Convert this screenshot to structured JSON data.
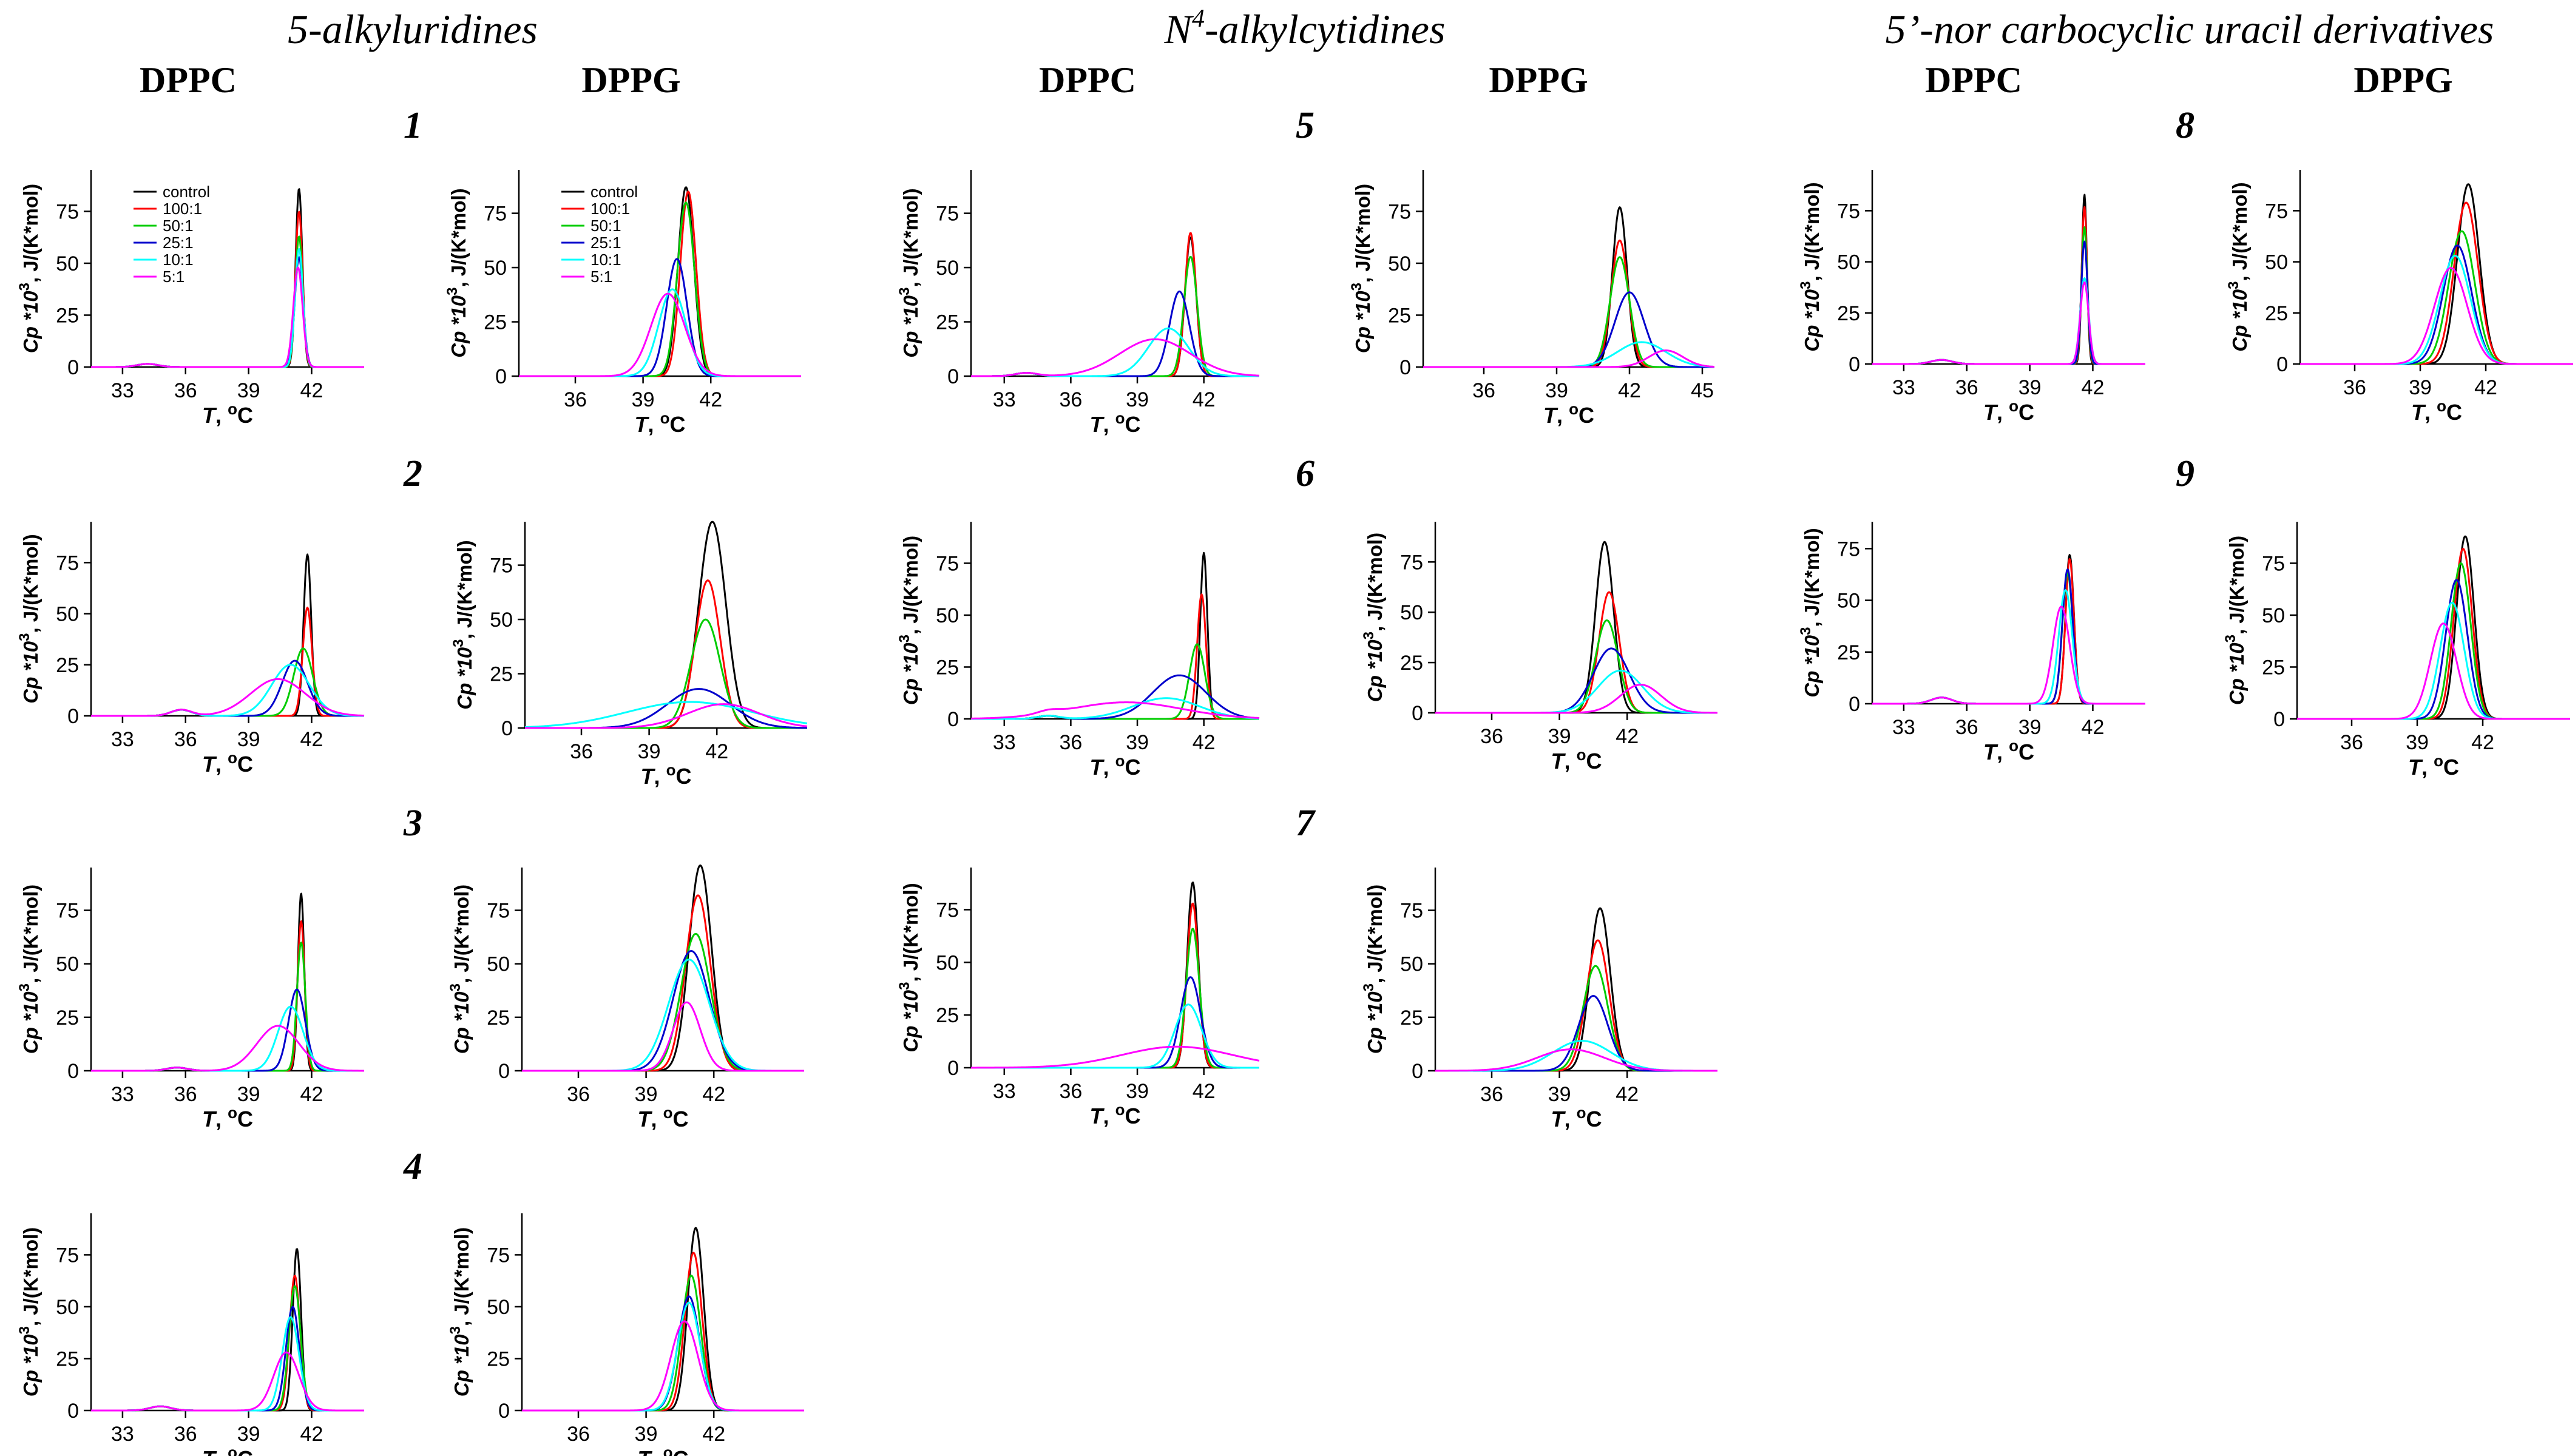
{
  "headers": {
    "groups": [
      {
        "label": "5-alkyluridines"
      },
      {
        "prefix": "N",
        "sup": "4",
        "suffix": "-alkylcytidines"
      },
      {
        "label": "5’-nor carbocyclic uracil derivatives"
      }
    ],
    "columns": [
      "DPPC",
      "DPPG",
      "DPPC",
      "DPPG",
      "DPPC",
      "DPPG"
    ]
  },
  "compounds": [
    "1",
    "2",
    "3",
    "4",
    "5",
    "6",
    "7",
    "8",
    "9"
  ],
  "axis_text": {
    "ylabel_main": "Cp *10",
    "ylabel_sup": "3",
    "ylabel_unit": ", J/(K*mol)",
    "xlabel_main": "T",
    "xlabel_unit": ", ",
    "xlabel_sup": "o",
    "xlabel_C": "C"
  },
  "series": [
    {
      "name": "control",
      "color": "#000000"
    },
    {
      "name": "100:1",
      "color": "#ff0000"
    },
    {
      "name": "50:1",
      "color": "#00cc00"
    },
    {
      "name": "25:1",
      "color": "#0000cc"
    },
    {
      "name": "10:1",
      "color": "#00ffff"
    },
    {
      "name": "5:1",
      "color": "#ff00ff"
    }
  ],
  "chart_data": [
    {
      "id": "c1-dppc",
      "compound": "1",
      "lipid": "DPPC",
      "type": "line",
      "xlabel": "T, oC",
      "ylabel": "Cp *10^3, J/(K*mol)",
      "xlim": [
        31.5,
        44.5
      ],
      "xticks": [
        33,
        36,
        39,
        42
      ],
      "ylim": [
        0,
        95
      ],
      "yticks": [
        0,
        25,
        50,
        75
      ],
      "show_legend": true,
      "pre": {
        "center": 34.2,
        "height": 1.5,
        "width": 0.5
      },
      "peaks": [
        {
          "center": 41.4,
          "height": 86,
          "width": 0.16
        },
        {
          "center": 41.4,
          "height": 75,
          "width": 0.17
        },
        {
          "center": 41.4,
          "height": 63,
          "width": 0.18
        },
        {
          "center": 41.4,
          "height": 53,
          "width": 0.2
        },
        {
          "center": 41.4,
          "height": 57,
          "width": 0.19
        },
        {
          "center": 41.35,
          "height": 48,
          "width": 0.22
        }
      ]
    },
    {
      "id": "c1-dppg",
      "compound": "1",
      "lipid": "DPPG",
      "type": "line",
      "xlabel": "T, oC",
      "ylabel": "Cp *10^3, J/(K*mol)",
      "xlim": [
        33.5,
        46
      ],
      "xticks": [
        36,
        39,
        42
      ],
      "ylim": [
        0,
        95
      ],
      "yticks": [
        0,
        25,
        50,
        75
      ],
      "show_legend": true,
      "peaks": [
        {
          "center": 40.9,
          "height": 87,
          "width": 0.35
        },
        {
          "center": 41.0,
          "height": 85,
          "width": 0.35
        },
        {
          "center": 40.9,
          "height": 80,
          "width": 0.38
        },
        {
          "center": 40.5,
          "height": 54,
          "width": 0.45
        },
        {
          "center": 40.3,
          "height": 40,
          "width": 0.6
        },
        {
          "center": 40.1,
          "height": 38,
          "width": 0.75
        }
      ]
    },
    {
      "id": "c2-dppc",
      "compound": "2",
      "lipid": "DPPC",
      "type": "line",
      "xlabel": "T, oC",
      "ylabel": "Cp *10^3, J/(K*mol)",
      "xlim": [
        31.5,
        44.5
      ],
      "xticks": [
        33,
        36,
        39,
        42
      ],
      "ylim": [
        0,
        95
      ],
      "yticks": [
        0,
        25,
        50,
        75
      ],
      "pre": {
        "center": 35.8,
        "height": 3,
        "width": 0.5
      },
      "peaks": [
        {
          "center": 41.8,
          "height": 79,
          "width": 0.18
        },
        {
          "center": 41.8,
          "height": 53,
          "width": 0.22
        },
        {
          "center": 41.6,
          "height": 33,
          "width": 0.45
        },
        {
          "center": 41.2,
          "height": 27,
          "width": 0.6
        },
        {
          "center": 41.0,
          "height": 25,
          "width": 0.9
        },
        {
          "center": 40.4,
          "height": 18,
          "width": 1.3
        }
      ]
    },
    {
      "id": "c2-dppg",
      "compound": "2",
      "lipid": "DPPG",
      "type": "line",
      "xlabel": "T, oC",
      "ylabel": "Cp *10^3, J/(K*mol)",
      "xlim": [
        33.5,
        46
      ],
      "xticks": [
        36,
        39,
        42
      ],
      "ylim": [
        0,
        95
      ],
      "yticks": [
        0,
        25,
        50,
        75
      ],
      "peaks": [
        {
          "center": 41.8,
          "height": 95,
          "width": 0.6
        },
        {
          "center": 41.6,
          "height": 68,
          "width": 0.55
        },
        {
          "center": 41.5,
          "height": 50,
          "width": 0.65
        },
        {
          "center": 41.2,
          "height": 18,
          "width": 1.4
        },
        {
          "center": 40.8,
          "height": 12,
          "width": 2.8
        },
        {
          "center": 42.3,
          "height": 11,
          "width": 1.6
        }
      ]
    },
    {
      "id": "c3-dppc",
      "compound": "3",
      "lipid": "DPPC",
      "type": "line",
      "xlabel": "T, oC",
      "ylabel": "Cp *10^3, J/(K*mol)",
      "xlim": [
        31.5,
        44.5
      ],
      "xticks": [
        33,
        36,
        39,
        42
      ],
      "ylim": [
        0,
        95
      ],
      "yticks": [
        0,
        25,
        50,
        75
      ],
      "pre": {
        "center": 35.6,
        "height": 1.5,
        "width": 0.5
      },
      "peaks": [
        {
          "center": 41.5,
          "height": 83,
          "width": 0.15
        },
        {
          "center": 41.5,
          "height": 70,
          "width": 0.17
        },
        {
          "center": 41.5,
          "height": 60,
          "width": 0.2
        },
        {
          "center": 41.3,
          "height": 38,
          "width": 0.4
        },
        {
          "center": 41.0,
          "height": 30,
          "width": 0.6
        },
        {
          "center": 40.4,
          "height": 21,
          "width": 1.0
        }
      ]
    },
    {
      "id": "c3-dppg",
      "compound": "3",
      "lipid": "DPPG",
      "type": "line",
      "xlabel": "T, oC",
      "ylabel": "Cp *10^3, J/(K*mol)",
      "xlim": [
        33.5,
        46
      ],
      "xticks": [
        36,
        39,
        42
      ],
      "ylim": [
        0,
        95
      ],
      "yticks": [
        0,
        25,
        50,
        75
      ],
      "peaks": [
        {
          "center": 41.4,
          "height": 96,
          "width": 0.5
        },
        {
          "center": 41.3,
          "height": 82,
          "width": 0.55
        },
        {
          "center": 41.2,
          "height": 64,
          "width": 0.65
        },
        {
          "center": 41.0,
          "height": 56,
          "width": 0.8
        },
        {
          "center": 40.9,
          "height": 52,
          "width": 0.9
        },
        {
          "center": 40.8,
          "height": 32,
          "width": 0.6
        }
      ]
    },
    {
      "id": "c4-dppc",
      "compound": "4",
      "lipid": "DPPC",
      "type": "line",
      "xlabel": "T, oC",
      "ylabel": "Cp *10^3, J/(K*mol)",
      "xlim": [
        31.5,
        44.5
      ],
      "xticks": [
        33,
        36,
        39,
        42
      ],
      "ylim": [
        0,
        95
      ],
      "yticks": [
        0,
        25,
        50,
        75
      ],
      "pre": {
        "center": 34.8,
        "height": 2,
        "width": 0.5
      },
      "peaks": [
        {
          "center": 41.3,
          "height": 78,
          "width": 0.2
        },
        {
          "center": 41.2,
          "height": 65,
          "width": 0.25
        },
        {
          "center": 41.2,
          "height": 60,
          "width": 0.28
        },
        {
          "center": 41.1,
          "height": 50,
          "width": 0.32
        },
        {
          "center": 41.0,
          "height": 45,
          "width": 0.4
        },
        {
          "center": 40.8,
          "height": 28,
          "width": 0.6
        }
      ]
    },
    {
      "id": "c4-dppg",
      "compound": "4",
      "lipid": "DPPG",
      "type": "line",
      "xlabel": "T, oC",
      "ylabel": "Cp *10^3, J/(K*mol)",
      "xlim": [
        33.5,
        46
      ],
      "xticks": [
        36,
        39,
        42
      ],
      "ylim": [
        0,
        95
      ],
      "yticks": [
        0,
        25,
        50,
        75
      ],
      "peaks": [
        {
          "center": 41.2,
          "height": 88,
          "width": 0.35
        },
        {
          "center": 41.1,
          "height": 76,
          "width": 0.38
        },
        {
          "center": 41.0,
          "height": 65,
          "width": 0.42
        },
        {
          "center": 40.9,
          "height": 55,
          "width": 0.48
        },
        {
          "center": 40.9,
          "height": 52,
          "width": 0.5
        },
        {
          "center": 40.7,
          "height": 43,
          "width": 0.6
        }
      ]
    },
    {
      "id": "c5-dppc",
      "compound": "5",
      "lipid": "DPPC",
      "type": "line",
      "xlabel": "T, oC",
      "ylabel": "Cp *10^3, J/(K*mol)",
      "xlim": [
        31.5,
        44.5
      ],
      "xticks": [
        33,
        36,
        39,
        42
      ],
      "ylim": [
        0,
        95
      ],
      "yticks": [
        0,
        25,
        50,
        75
      ],
      "pre": {
        "center": 34.0,
        "height": 1.5,
        "width": 0.5
      },
      "peaks": [
        {
          "center": 41.4,
          "height": 64,
          "width": 0.25
        },
        {
          "center": 41.4,
          "height": 66,
          "width": 0.25
        },
        {
          "center": 41.4,
          "height": 55,
          "width": 0.3
        },
        {
          "center": 40.9,
          "height": 39,
          "width": 0.45
        },
        {
          "center": 40.4,
          "height": 22,
          "width": 0.9
        },
        {
          "center": 39.8,
          "height": 17,
          "width": 1.6
        }
      ]
    },
    {
      "id": "c5-dppg",
      "compound": "5",
      "lipid": "DPPG",
      "type": "line",
      "xlabel": "T, oC",
      "ylabel": "Cp *10^3, J/(K*mol)",
      "xlim": [
        33.5,
        45.5
      ],
      "xticks": [
        36,
        39,
        42,
        45
      ],
      "ylim": [
        0,
        95
      ],
      "yticks": [
        0,
        25,
        50,
        75
      ],
      "peaks": [
        {
          "center": 41.6,
          "height": 77,
          "width": 0.3
        },
        {
          "center": 41.6,
          "height": 61,
          "width": 0.35
        },
        {
          "center": 41.6,
          "height": 53,
          "width": 0.4
        },
        {
          "center": 42.0,
          "height": 36,
          "width": 0.6
        },
        {
          "center": 42.5,
          "height": 12,
          "width": 1.0
        },
        {
          "center": 43.5,
          "height": 8,
          "width": 0.7
        }
      ]
    },
    {
      "id": "c6-dppc",
      "compound": "6",
      "lipid": "DPPC",
      "type": "line",
      "xlabel": "T, oC",
      "ylabel": "Cp *10^3, J/(K*mol)",
      "xlim": [
        31.5,
        44.5
      ],
      "xticks": [
        33,
        36,
        39,
        42
      ],
      "ylim": [
        0,
        95
      ],
      "yticks": [
        0,
        25,
        50,
        75
      ],
      "pre": {
        "center": 35.0,
        "height": 1.5,
        "width": 0.5
      },
      "peaks": [
        {
          "center": 42.0,
          "height": 80,
          "width": 0.16
        },
        {
          "center": 41.9,
          "height": 60,
          "width": 0.2
        },
        {
          "center": 41.7,
          "height": 36,
          "width": 0.35
        },
        {
          "center": 40.9,
          "height": 21,
          "width": 1.2
        },
        {
          "center": 40.3,
          "height": 10,
          "width": 1.5
        },
        {
          "center": 38.5,
          "height": 8,
          "width": 2.5
        }
      ]
    },
    {
      "id": "c6-dppg",
      "compound": "6",
      "lipid": "DPPG",
      "type": "line",
      "xlabel": "T, oC",
      "ylabel": "Cp *10^3, J/(K*mol)",
      "xlim": [
        33.5,
        46
      ],
      "xticks": [
        36,
        39,
        42
      ],
      "ylim": [
        0,
        95
      ],
      "yticks": [
        0,
        25,
        50,
        75
      ],
      "peaks": [
        {
          "center": 41.0,
          "height": 85,
          "width": 0.4
        },
        {
          "center": 41.2,
          "height": 60,
          "width": 0.45
        },
        {
          "center": 41.1,
          "height": 46,
          "width": 0.5
        },
        {
          "center": 41.3,
          "height": 32,
          "width": 0.8
        },
        {
          "center": 41.7,
          "height": 21,
          "width": 1.0
        },
        {
          "center": 42.6,
          "height": 14,
          "width": 0.9
        }
      ]
    },
    {
      "id": "c7-dppc",
      "compound": "7",
      "lipid": "DPPC",
      "type": "line",
      "xlabel": "T, oC",
      "ylabel": "Cp *10^3, J/(K*mol)",
      "xlim": [
        31.5,
        44.5
      ],
      "xticks": [
        33,
        36,
        39,
        42
      ],
      "ylim": [
        0,
        95
      ],
      "yticks": [
        0,
        25,
        50,
        75
      ],
      "peaks": [
        {
          "center": 41.5,
          "height": 88,
          "width": 0.25
        },
        {
          "center": 41.5,
          "height": 78,
          "width": 0.26
        },
        {
          "center": 41.5,
          "height": 66,
          "width": 0.3
        },
        {
          "center": 41.4,
          "height": 43,
          "width": 0.45
        },
        {
          "center": 41.3,
          "height": 30,
          "width": 0.6
        },
        {
          "center": 40.8,
          "height": 10,
          "width": 2.5
        }
      ]
    },
    {
      "id": "c7-dppg",
      "compound": "7",
      "lipid": "DPPG",
      "type": "line",
      "xlabel": "T, oC",
      "ylabel": "Cp *10^3, J/(K*mol)",
      "xlim": [
        33.5,
        46
      ],
      "xticks": [
        36,
        39,
        42
      ],
      "ylim": [
        0,
        95
      ],
      "yticks": [
        0,
        25,
        50,
        75
      ],
      "peaks": [
        {
          "center": 40.8,
          "height": 76,
          "width": 0.45
        },
        {
          "center": 40.7,
          "height": 61,
          "width": 0.5
        },
        {
          "center": 40.6,
          "height": 49,
          "width": 0.55
        },
        {
          "center": 40.5,
          "height": 35,
          "width": 0.65
        },
        {
          "center": 40.0,
          "height": 14,
          "width": 1.3
        },
        {
          "center": 39.5,
          "height": 10,
          "width": 1.5
        }
      ]
    },
    {
      "id": "c8-dppc",
      "compound": "8",
      "lipid": "DPPC",
      "type": "line",
      "xlabel": "T, oC",
      "ylabel": "Cp *10^3, J/(K*mol)",
      "xlim": [
        31.5,
        44.5
      ],
      "xticks": [
        33,
        36,
        39,
        42
      ],
      "ylim": [
        0,
        95
      ],
      "yticks": [
        0,
        25,
        50,
        75
      ],
      "pre": {
        "center": 34.8,
        "height": 2,
        "width": 0.5
      },
      "peaks": [
        {
          "center": 41.6,
          "height": 83,
          "width": 0.12
        },
        {
          "center": 41.6,
          "height": 77,
          "width": 0.13
        },
        {
          "center": 41.6,
          "height": 67,
          "width": 0.14
        },
        {
          "center": 41.6,
          "height": 60,
          "width": 0.15
        },
        {
          "center": 41.6,
          "height": 42,
          "width": 0.2
        },
        {
          "center": 41.6,
          "height": 40,
          "width": 0.2
        }
      ]
    },
    {
      "id": "c8-dppg",
      "compound": "8",
      "lipid": "DPPG",
      "type": "line",
      "xlabel": "T, oC",
      "ylabel": "Cp *10^3, J/(K*mol)",
      "xlim": [
        33.5,
        46
      ],
      "xticks": [
        36,
        39,
        42
      ],
      "ylim": [
        0,
        95
      ],
      "yticks": [
        0,
        25,
        50,
        75
      ],
      "peaks": [
        {
          "center": 41.2,
          "height": 88,
          "width": 0.5
        },
        {
          "center": 41.1,
          "height": 79,
          "width": 0.55
        },
        {
          "center": 40.9,
          "height": 65,
          "width": 0.6
        },
        {
          "center": 40.7,
          "height": 58,
          "width": 0.65
        },
        {
          "center": 40.6,
          "height": 53,
          "width": 0.7
        },
        {
          "center": 40.4,
          "height": 47,
          "width": 0.75
        }
      ]
    },
    {
      "id": "c9-dppc",
      "compound": "9",
      "lipid": "DPPC",
      "type": "line",
      "xlabel": "T, oC",
      "ylabel": "Cp *10^3, J/(K*mol)",
      "xlim": [
        31.5,
        44.5
      ],
      "xticks": [
        33,
        36,
        39,
        42
      ],
      "ylim": [
        0,
        88
      ],
      "yticks": [
        0,
        25,
        50,
        75
      ],
      "pre": {
        "center": 34.8,
        "height": 3,
        "width": 0.5
      },
      "peaks": [
        {
          "center": 40.9,
          "height": 72,
          "width": 0.2
        },
        {
          "center": 40.9,
          "height": 70,
          "width": 0.2
        },
        {
          "center": 40.8,
          "height": 63,
          "width": 0.25
        },
        {
          "center": 40.8,
          "height": 65,
          "width": 0.25
        },
        {
          "center": 40.7,
          "height": 55,
          "width": 0.32
        },
        {
          "center": 40.5,
          "height": 47,
          "width": 0.4
        }
      ]
    },
    {
      "id": "c9-dppg",
      "compound": "9",
      "lipid": "DPPG",
      "type": "line",
      "xlabel": "T, oC",
      "ylabel": "Cp *10^3, J/(K*mol)",
      "xlim": [
        33.5,
        46
      ],
      "xticks": [
        36,
        39,
        42
      ],
      "ylim": [
        0,
        95
      ],
      "yticks": [
        0,
        25,
        50,
        75
      ],
      "peaks": [
        {
          "center": 41.2,
          "height": 88,
          "width": 0.4
        },
        {
          "center": 41.1,
          "height": 82,
          "width": 0.42
        },
        {
          "center": 41.0,
          "height": 75,
          "width": 0.45
        },
        {
          "center": 40.8,
          "height": 67,
          "width": 0.5
        },
        {
          "center": 40.6,
          "height": 56,
          "width": 0.55
        },
        {
          "center": 40.2,
          "height": 46,
          "width": 0.6
        }
      ]
    }
  ]
}
